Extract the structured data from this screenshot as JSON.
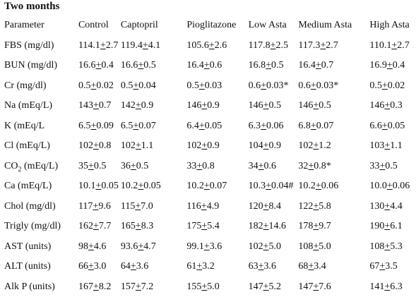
{
  "title": "Two months",
  "columns": [
    "Parameter",
    "Control",
    "Captopril",
    "Pioglitazone",
    "Low Asta",
    "Medium Asta",
    "High Asta"
  ],
  "rows": [
    {
      "param": "FBS (mg/dl)",
      "cells": [
        [
          "114.1",
          "2.7",
          ""
        ],
        [
          "119.4",
          "4.1",
          ""
        ],
        [
          "105.6",
          "2.6",
          ""
        ],
        [
          "117.8",
          "2.5",
          ""
        ],
        [
          "117.3",
          "2.7",
          ""
        ],
        [
          "110.1",
          "2.7",
          ""
        ]
      ]
    },
    {
      "param": "BUN (mg/dl)",
      "cells": [
        [
          "16.6",
          "0.4",
          ""
        ],
        [
          "16.6",
          "0.5",
          ""
        ],
        [
          "16.4",
          "0.6",
          ""
        ],
        [
          "16.8",
          "0.5",
          ""
        ],
        [
          "16.4",
          "0.7",
          ""
        ],
        [
          "16.9",
          "0.4",
          ""
        ]
      ]
    },
    {
      "param": "Cr (mg/dl)",
      "cells": [
        [
          "0.5",
          "0.02",
          ""
        ],
        [
          "0.5",
          "0.04",
          ""
        ],
        [
          "0.5",
          "0.03",
          ""
        ],
        [
          "0.6",
          "0.03",
          "*"
        ],
        [
          "0.6",
          "0.03",
          "*"
        ],
        [
          "0.5",
          "0.02",
          ""
        ]
      ]
    },
    {
      "param": "Na (mEq/L)",
      "cells": [
        [
          "143",
          "0.7",
          ""
        ],
        [
          "142",
          "0.9",
          ""
        ],
        [
          "146",
          "0.9",
          ""
        ],
        [
          "146",
          "0.5",
          ""
        ],
        [
          "146",
          "0.5",
          ""
        ],
        [
          "146",
          "0.3",
          ""
        ]
      ]
    },
    {
      "param": "K (mEq/L",
      "cells": [
        [
          "6.5",
          "0.09",
          ""
        ],
        [
          "6.5",
          "0.07",
          ""
        ],
        [
          "6.4",
          "0.05",
          ""
        ],
        [
          "6.3",
          "0.06",
          ""
        ],
        [
          "6.8",
          "0.07",
          ""
        ],
        [
          "6.6",
          "0.05",
          ""
        ]
      ]
    },
    {
      "param": "Cl (mEq/L)",
      "cells": [
        [
          "102",
          "0.8",
          ""
        ],
        [
          "102",
          "1.1",
          ""
        ],
        [
          "102",
          "0.9",
          ""
        ],
        [
          "104",
          "0.9",
          ""
        ],
        [
          "102",
          "1.2",
          ""
        ],
        [
          "103",
          "1.1",
          ""
        ]
      ]
    },
    {
      "param": "CO2 (mEq/L)",
      "cells": [
        [
          "35",
          "0.5",
          ""
        ],
        [
          "36",
          "0.5",
          ""
        ],
        [
          "33",
          "0.8",
          ""
        ],
        [
          "34",
          "0.6",
          ""
        ],
        [
          "32",
          "0.8",
          "*"
        ],
        [
          "33",
          "0.5",
          ""
        ]
      ]
    },
    {
      "param": "Ca (mEq/L)",
      "cells": [
        [
          "10.1",
          "0.05",
          ""
        ],
        [
          "10.2",
          "0.05",
          ""
        ],
        [
          "10.2",
          "0.07",
          ""
        ],
        [
          "10.3",
          "0.04",
          "#"
        ],
        [
          "10.2",
          "0.06",
          ""
        ],
        [
          "10.0",
          "0.06",
          ""
        ]
      ]
    },
    {
      "param": "Chol (mg/dl)",
      "cells": [
        [
          "117",
          "9.6",
          ""
        ],
        [
          "115",
          "7.0",
          ""
        ],
        [
          "116",
          "4.9",
          ""
        ],
        [
          "120",
          "8.4",
          ""
        ],
        [
          "122",
          "5.8",
          ""
        ],
        [
          "130",
          "4.4",
          ""
        ]
      ]
    },
    {
      "param": "Trigly (mg/dl)",
      "cells": [
        [
          "162",
          "7.7",
          ""
        ],
        [
          "165",
          "8.3",
          ""
        ],
        [
          "175",
          "5.4",
          ""
        ],
        [
          "182",
          "14.6",
          ""
        ],
        [
          "178",
          "9.7",
          ""
        ],
        [
          "190",
          "6.1",
          ""
        ]
      ]
    },
    {
      "param": "AST (units)",
      "cells": [
        [
          "98",
          "4.6",
          ""
        ],
        [
          "93.6",
          "4.7",
          ""
        ],
        [
          "99.1",
          "3.6",
          ""
        ],
        [
          "102",
          "5.0",
          ""
        ],
        [
          "108",
          "5.0",
          ""
        ],
        [
          "108",
          "5.3",
          ""
        ]
      ]
    },
    {
      "param": "ALT (units)",
      "cells": [
        [
          "66",
          "3.0",
          ""
        ],
        [
          "64",
          "3.6",
          ""
        ],
        [
          "61",
          "3.2",
          ""
        ],
        [
          "63",
          "3.6",
          ""
        ],
        [
          "68",
          "3.4",
          ""
        ],
        [
          "67",
          "3.5",
          ""
        ]
      ]
    },
    {
      "param": "Alk P (units)",
      "cells": [
        [
          "167",
          "8.2",
          ""
        ],
        [
          "157",
          "7.2",
          ""
        ],
        [
          "155",
          "5.0",
          ""
        ],
        [
          "147",
          "5.2",
          ""
        ],
        [
          "147",
          "7.6",
          ""
        ],
        [
          "141",
          "6.3",
          ""
        ]
      ]
    }
  ]
}
